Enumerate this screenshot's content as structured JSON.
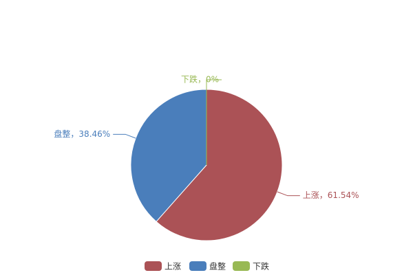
{
  "chart_data": {
    "type": "pie",
    "categories": [
      "上涨",
      "盘整",
      "下跌"
    ],
    "series": [
      {
        "name": "上涨",
        "color": "#ab5256"
      },
      {
        "name": "盘整",
        "color": "#4a7ebb"
      },
      {
        "name": "下跌",
        "color": "#98b954"
      }
    ],
    "values": [
      61.54,
      38.46,
      0
    ],
    "value_labels": [
      "上涨，61.54%",
      "盘整，38.46%",
      "下跌，0%"
    ]
  }
}
